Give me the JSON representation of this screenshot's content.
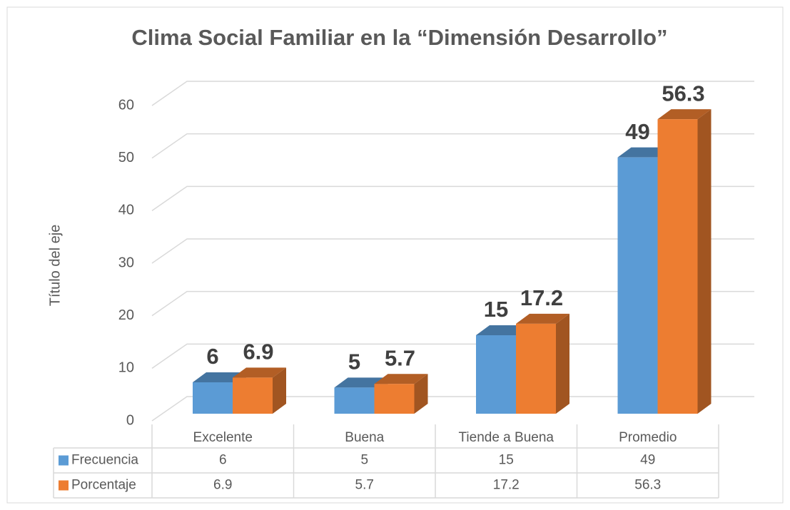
{
  "chart_data": {
    "type": "bar3d",
    "title": "Clima Social Familiar en la “Dimensión Desarrollo”",
    "y_axis_label": "Título del eje",
    "categories": [
      "Excelente",
      "Buena",
      "Tiende a Buena",
      "Promedio"
    ],
    "series": [
      {
        "name": "Frecuencia",
        "color": "#5b9bd5",
        "values": [
          6,
          5,
          15,
          49
        ]
      },
      {
        "name": "Porcentaje",
        "color": "#ed7d31",
        "values": [
          6.9,
          5.7,
          17.2,
          56.3
        ]
      }
    ],
    "ylim": [
      0,
      60
    ],
    "yticks": [
      0,
      10,
      20,
      30,
      40,
      50,
      60
    ],
    "grid": true,
    "data_table": true
  }
}
